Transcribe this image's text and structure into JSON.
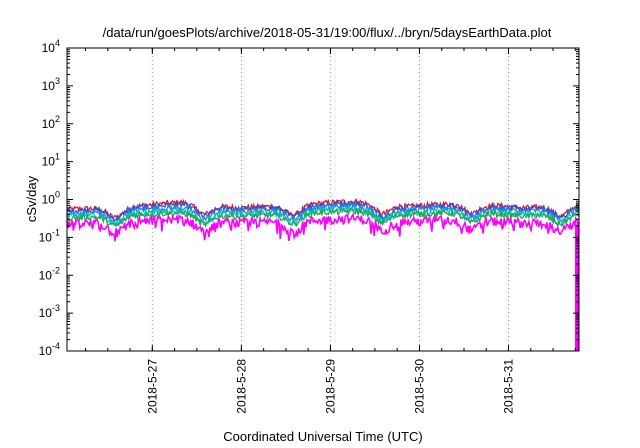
{
  "chart_data": {
    "type": "line",
    "title": "/data/run/goesPlots/archive/2018-05-31/19:00/flux/../bryn/5daysEarthData.plot",
    "xlabel": "Coordinated Universal Time (UTC)",
    "ylabel": "cSv/day",
    "yscale": "log",
    "ylim": [
      0.0001,
      10000
    ],
    "xlim": [
      "2018-05-26T01:00",
      "2018-05-31T19:00"
    ],
    "x_ticks": [
      "2018-5-27",
      "2018-5-28",
      "2018-5-29",
      "2018-5-30",
      "2018-5-31"
    ],
    "y_ticks": [
      {
        "base": "10",
        "exp": "4"
      },
      {
        "base": "10",
        "exp": "3"
      },
      {
        "base": "10",
        "exp": "2"
      },
      {
        "base": "10",
        "exp": "1"
      },
      {
        "base": "10",
        "exp": "0"
      },
      {
        "base": "10",
        "exp": "-1"
      },
      {
        "base": "10",
        "exp": "-2"
      },
      {
        "base": "10",
        "exp": "-3"
      },
      {
        "base": "10",
        "exp": "-4"
      }
    ],
    "grid": "x-major dotted",
    "legend": "none",
    "series": [
      {
        "color": "#e8102a",
        "values": [
          0.55,
          0.62,
          0.85,
          0.6,
          0.7,
          0.9,
          0.65,
          0.8,
          0.6,
          0.7
        ]
      },
      {
        "color": "#2b4fe0",
        "values": [
          0.5,
          0.58,
          0.75,
          0.55,
          0.66,
          0.8,
          0.6,
          0.74,
          0.55,
          0.68
        ]
      },
      {
        "color": "#1a8fd8",
        "values": [
          0.42,
          0.5,
          0.62,
          0.48,
          0.56,
          0.68,
          0.52,
          0.62,
          0.48,
          0.58
        ]
      },
      {
        "color": "#00c8c8",
        "values": [
          0.36,
          0.42,
          0.5,
          0.4,
          0.46,
          0.55,
          0.44,
          0.5,
          0.4,
          0.48
        ]
      },
      {
        "color": "#22a84a",
        "values": [
          0.32,
          0.38,
          0.45,
          0.36,
          0.42,
          0.5,
          0.4,
          0.46,
          0.37,
          0.43
        ]
      },
      {
        "color": "#ff00ff",
        "values": [
          0.22,
          0.26,
          0.3,
          0.24,
          0.27,
          0.32,
          0.26,
          0.3,
          0.24,
          0.28
        ]
      }
    ],
    "end_drop": {
      "x": "2018-05-31T19:00",
      "y": 0.0001,
      "color": "#ff00ff"
    }
  }
}
